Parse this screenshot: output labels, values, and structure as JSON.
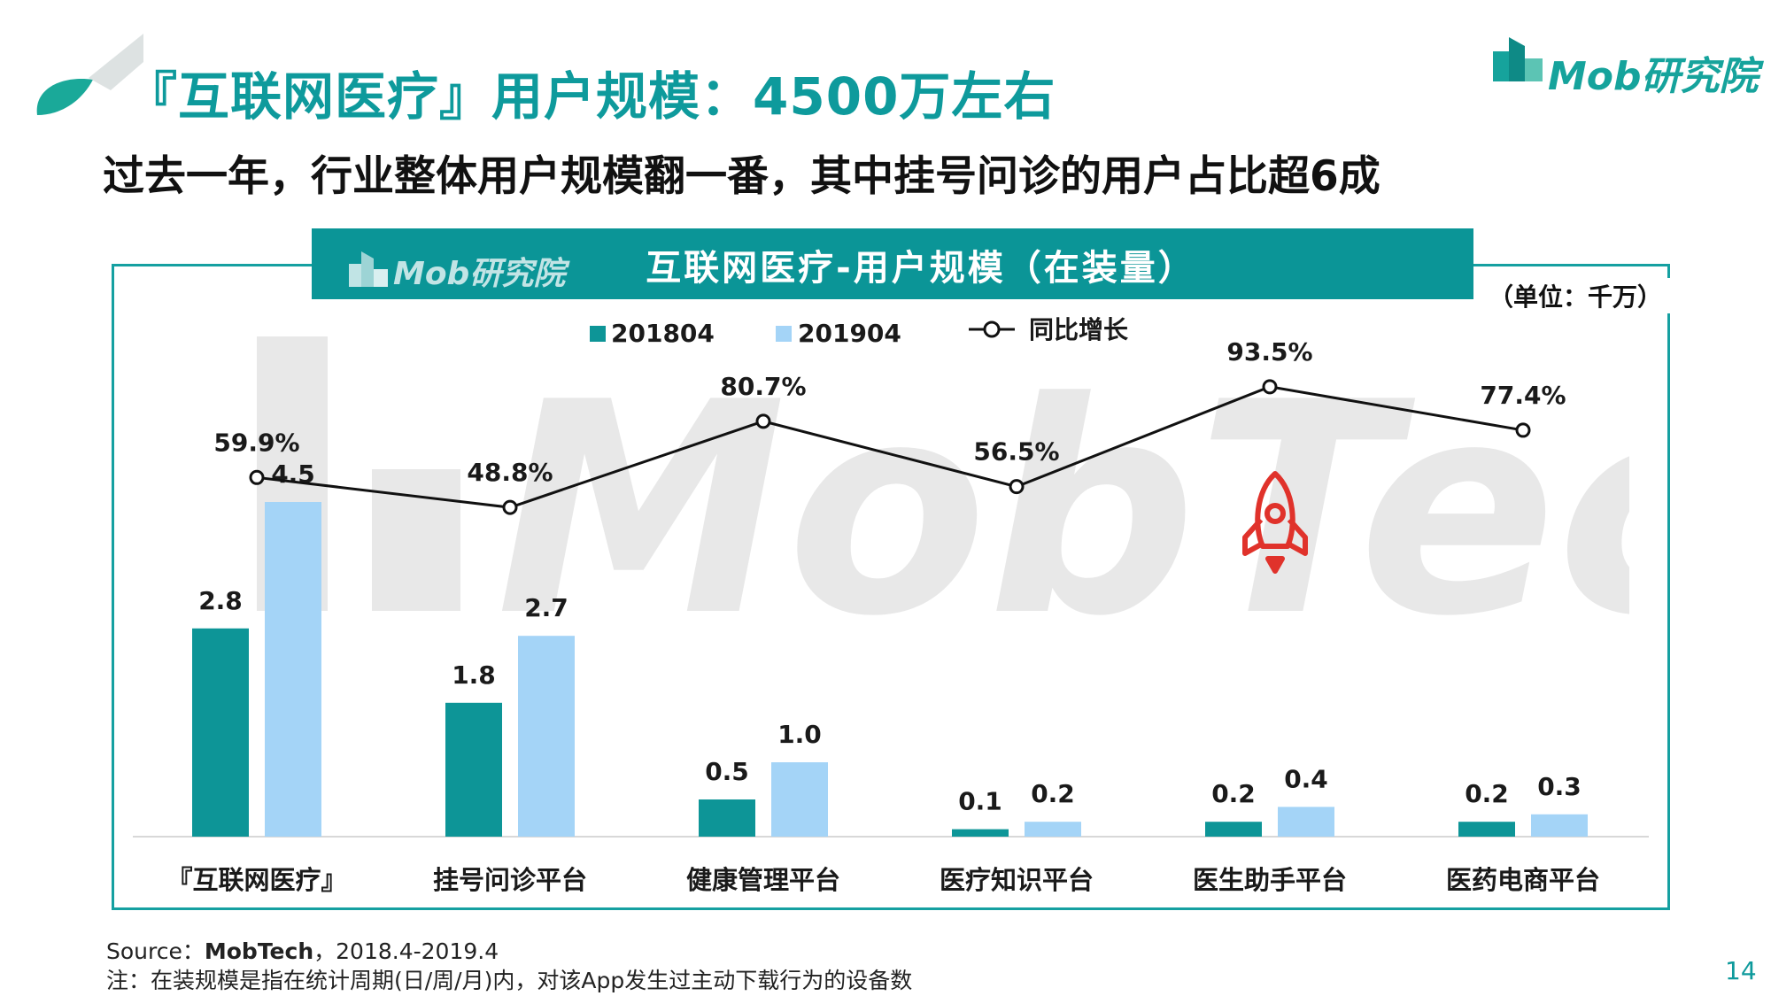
{
  "header": {
    "title": "『互联网医疗』用户规模：4500万左右",
    "subtitle": "过去一年，行业整体用户规模翻一番，其中挂号问诊的用户占比超6成",
    "logo": "Mob研究院"
  },
  "footer": {
    "source_prefix": "Source：",
    "source_brand": "MobTech",
    "source_period": "，2018.4-2019.4",
    "note": "注：在装规模是指在统计周期(日/周/月)内，对该App发生过主动下载行为的设备数",
    "page_number": "14"
  },
  "watermark": "MobTech",
  "colors": {
    "accent": "#0b9597",
    "series_2018": "#0d9597",
    "series_2019": "#a4d4f7",
    "line": "#111111",
    "rocket": "#e0322b"
  },
  "chart_data": {
    "type": "bar",
    "title": "互联网医疗-用户规模（在装量）",
    "unit": "（单位：千万）",
    "categories": [
      "『互联网医疗』",
      "挂号问诊平台",
      "健康管理平台",
      "医疗知识平台",
      "医生助手平台",
      "医药电商平台"
    ],
    "series": [
      {
        "name": "201804",
        "values": [
          2.8,
          1.8,
          0.5,
          0.1,
          0.2,
          0.2
        ],
        "labels": [
          "2.8",
          "1.8",
          "0.5",
          "0.1",
          "0.2",
          "0.2"
        ]
      },
      {
        "name": "201904",
        "values": [
          4.5,
          2.7,
          1.0,
          0.2,
          0.4,
          0.3
        ],
        "labels": [
          "4.5",
          "2.7",
          "1.0",
          "0.2",
          "0.4",
          "0.3"
        ]
      }
    ],
    "line_series": {
      "name": "同比增长",
      "type": "line",
      "values": [
        59.9,
        48.8,
        80.7,
        56.5,
        93.5,
        77.4
      ],
      "labels": [
        "59.9%",
        "48.8%",
        "80.7%",
        "56.5%",
        "93.5%",
        "77.4%"
      ]
    },
    "legend": "top-center",
    "grid": false
  }
}
